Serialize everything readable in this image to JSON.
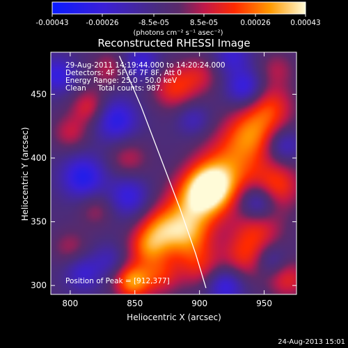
{
  "chart_data": {
    "type": "heatmap",
    "title": "Reconstructed RHESSI Image",
    "xlabel": "Heliocentric X (arcsec)",
    "ylabel": "Heliocentric Y (arcsec)",
    "xlim": [
      785,
      975
    ],
    "ylim": [
      293,
      483
    ],
    "x_ticks": [
      800,
      850,
      900,
      950
    ],
    "y_ticks": [
      300,
      350,
      400,
      450
    ],
    "colorbar": {
      "min": -0.00043,
      "max": 0.00043,
      "tick_values": [
        -0.00043,
        -0.00026,
        -8.5e-05,
        8.5e-05,
        0.00026,
        0.00043
      ],
      "tick_labels": [
        "-0.00043",
        "-0.00026",
        "-8.5e-05",
        "8.5e-05",
        "0.00026",
        "0.00043"
      ],
      "units_label": "(photons cm⁻² s⁻¹ asec⁻²)"
    },
    "annotations": [
      "29-Aug-2011 14:19:44.000 to 14:20:24.000",
      "Detectors: 4F 5F 6F 7F 8F, Att 0",
      "Energy Range: 25.0 - 50.0 keV",
      "Clean     Total counts: 987."
    ],
    "peak_label": "Position of Peak = [912,377]",
    "peak": [
      912,
      377
    ],
    "limb_curve": [
      [
        838,
        480
      ],
      [
        855,
        440
      ],
      [
        870,
        400
      ],
      [
        885,
        360
      ],
      [
        897,
        325
      ],
      [
        905,
        298
      ]
    ],
    "sources": [
      {
        "x": 908,
        "y": 377,
        "value": 0.00043,
        "spread": 13
      },
      {
        "x": 895,
        "y": 362,
        "value": 0.0003,
        "spread": 16
      },
      {
        "x": 925,
        "y": 395,
        "value": 0.00026,
        "spread": 18
      },
      {
        "x": 940,
        "y": 420,
        "value": 0.00026,
        "spread": 14
      },
      {
        "x": 955,
        "y": 440,
        "value": 0.00022,
        "spread": 13
      },
      {
        "x": 960,
        "y": 378,
        "value": 0.00024,
        "spread": 13
      },
      {
        "x": 945,
        "y": 345,
        "value": 0.0002,
        "spread": 14
      },
      {
        "x": 935,
        "y": 322,
        "value": 0.0002,
        "spread": 13
      },
      {
        "x": 890,
        "y": 338,
        "value": 0.00026,
        "spread": 13
      },
      {
        "x": 870,
        "y": 345,
        "value": 0.00024,
        "spread": 12
      },
      {
        "x": 860,
        "y": 330,
        "value": 0.00026,
        "spread": 11
      },
      {
        "x": 848,
        "y": 303,
        "value": 0.00035,
        "spread": 10
      },
      {
        "x": 870,
        "y": 308,
        "value": 0.0002,
        "spread": 11
      },
      {
        "x": 900,
        "y": 315,
        "value": 0.00018,
        "spread": 12
      },
      {
        "x": 968,
        "y": 305,
        "value": 0.0002,
        "spread": 11
      },
      {
        "x": 880,
        "y": 455,
        "value": 0.00022,
        "spread": 12
      },
      {
        "x": 900,
        "y": 465,
        "value": 0.00015,
        "spread": 11
      },
      {
        "x": 815,
        "y": 440,
        "value": 0.0002,
        "spread": 10
      },
      {
        "x": 800,
        "y": 420,
        "value": 0.00015,
        "spread": 10
      },
      {
        "x": 845,
        "y": 400,
        "value": 0.00014,
        "spread": 11
      },
      {
        "x": 820,
        "y": 360,
        "value": 0.00012,
        "spread": 10
      },
      {
        "x": 800,
        "y": 330,
        "value": 0.00012,
        "spread": 10
      },
      {
        "x": 830,
        "y": 470,
        "value": 0.00014,
        "spread": 10
      },
      {
        "x": 960,
        "y": 470,
        "value": 0.00012,
        "spread": 10
      },
      {
        "x": 835,
        "y": 430,
        "value": -0.00026,
        "spread": 12
      },
      {
        "x": 810,
        "y": 385,
        "value": -0.00028,
        "spread": 12
      },
      {
        "x": 845,
        "y": 370,
        "value": -0.00022,
        "spread": 11
      },
      {
        "x": 790,
        "y": 465,
        "value": -0.00022,
        "spread": 10
      },
      {
        "x": 855,
        "y": 475,
        "value": -0.0002,
        "spread": 10
      },
      {
        "x": 935,
        "y": 455,
        "value": -0.00024,
        "spread": 10
      },
      {
        "x": 925,
        "y": 480,
        "value": -0.00018,
        "spread": 10
      },
      {
        "x": 945,
        "y": 365,
        "value": -0.00026,
        "spread": 10
      },
      {
        "x": 965,
        "y": 410,
        "value": -0.00018,
        "spread": 9
      },
      {
        "x": 920,
        "y": 300,
        "value": -0.00024,
        "spread": 10
      },
      {
        "x": 955,
        "y": 320,
        "value": -0.00016,
        "spread": 9
      },
      {
        "x": 810,
        "y": 310,
        "value": -0.00018,
        "spread": 10
      },
      {
        "x": 895,
        "y": 430,
        "value": -0.00014,
        "spread": 9
      },
      {
        "x": 830,
        "y": 320,
        "value": -0.00012,
        "spread": 9
      }
    ]
  },
  "timestamp": "24-Aug-2013 15:01"
}
